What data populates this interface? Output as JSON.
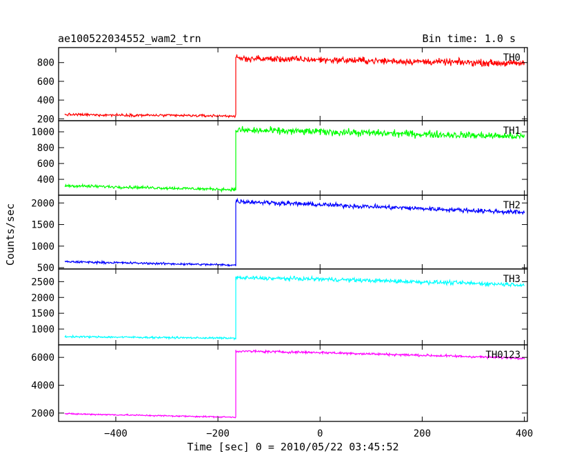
{
  "header": {
    "title": "ae100522034552_wam2_trn",
    "bin_time": "Bin time: 1.0 s"
  },
  "chart_data": {
    "type": "line",
    "xlabel": "Time [sec] 0 = 2010/05/22 03:45:52",
    "ylabel": "Counts/sec",
    "xlim": [
      -512,
      406
    ],
    "x_ticks": [
      -400,
      -200,
      0,
      200,
      400
    ],
    "x_tick_labels": [
      "−400",
      "−200",
      "0",
      "200",
      "400"
    ],
    "x_step": 1,
    "grid": false,
    "panels": [
      {
        "name": "TH0",
        "color": "#ff0000",
        "ylim": [
          180,
          960
        ],
        "y_ticks": [
          200,
          400,
          600,
          800
        ],
        "segments": [
          {
            "x": [
              -500,
              -165
            ],
            "y": [
              245,
              230
            ],
            "noise": 12
          },
          {
            "x": [
              -165,
              0
            ],
            "y": [
              845,
              830
            ],
            "noise": 30
          },
          {
            "x": [
              0,
              400
            ],
            "y": [
              830,
              790
            ],
            "noise": 30
          }
        ]
      },
      {
        "name": "TH1",
        "color": "#00ff00",
        "ylim": [
          200,
          1140
        ],
        "y_ticks": [
          400,
          600,
          800,
          1000
        ],
        "segments": [
          {
            "x": [
              -500,
              -165
            ],
            "y": [
              320,
              270
            ],
            "noise": 16
          },
          {
            "x": [
              -165,
              0
            ],
            "y": [
              1020,
              1000
            ],
            "noise": 38
          },
          {
            "x": [
              0,
              400
            ],
            "y": [
              1000,
              940
            ],
            "noise": 38
          }
        ]
      },
      {
        "name": "TH2",
        "color": "#0000ff",
        "ylim": [
          470,
          2180
        ],
        "y_ticks": [
          500,
          1000,
          1500,
          2000
        ],
        "y_tick_labels": [
          "500",
          "1000",
          "1500",
          "2000"
        ],
        "segments": [
          {
            "x": [
              -500,
              -165
            ],
            "y": [
              640,
              560
            ],
            "noise": 22
          },
          {
            "x": [
              -165,
              0
            ],
            "y": [
              2040,
              1960
            ],
            "noise": 45
          },
          {
            "x": [
              0,
              400
            ],
            "y": [
              1960,
              1780
            ],
            "noise": 45
          }
        ]
      },
      {
        "name": "TH3",
        "color": "#00ffff",
        "ylim": [
          500,
          2900
        ],
        "y_ticks": [
          1000,
          1500,
          2000,
          2500
        ],
        "segments": [
          {
            "x": [
              -500,
              -165
            ],
            "y": [
              760,
              710
            ],
            "noise": 25
          },
          {
            "x": [
              -165,
              0
            ],
            "y": [
              2620,
              2580
            ],
            "noise": 55
          },
          {
            "x": [
              0,
              400
            ],
            "y": [
              2580,
              2400
            ],
            "noise": 55
          }
        ]
      },
      {
        "name": "TH0123",
        "color": "#ff00ff",
        "ylim": [
          1400,
          6900
        ],
        "y_ticks": [
          2000,
          4000,
          6000
        ],
        "segments": [
          {
            "x": [
              -500,
              -165
            ],
            "y": [
              1950,
              1700
            ],
            "noise": 45
          },
          {
            "x": [
              -165,
              0
            ],
            "y": [
              6450,
              6350
            ],
            "noise": 75
          },
          {
            "x": [
              0,
              400
            ],
            "y": [
              6350,
              5950
            ],
            "noise": 75
          }
        ]
      }
    ]
  }
}
